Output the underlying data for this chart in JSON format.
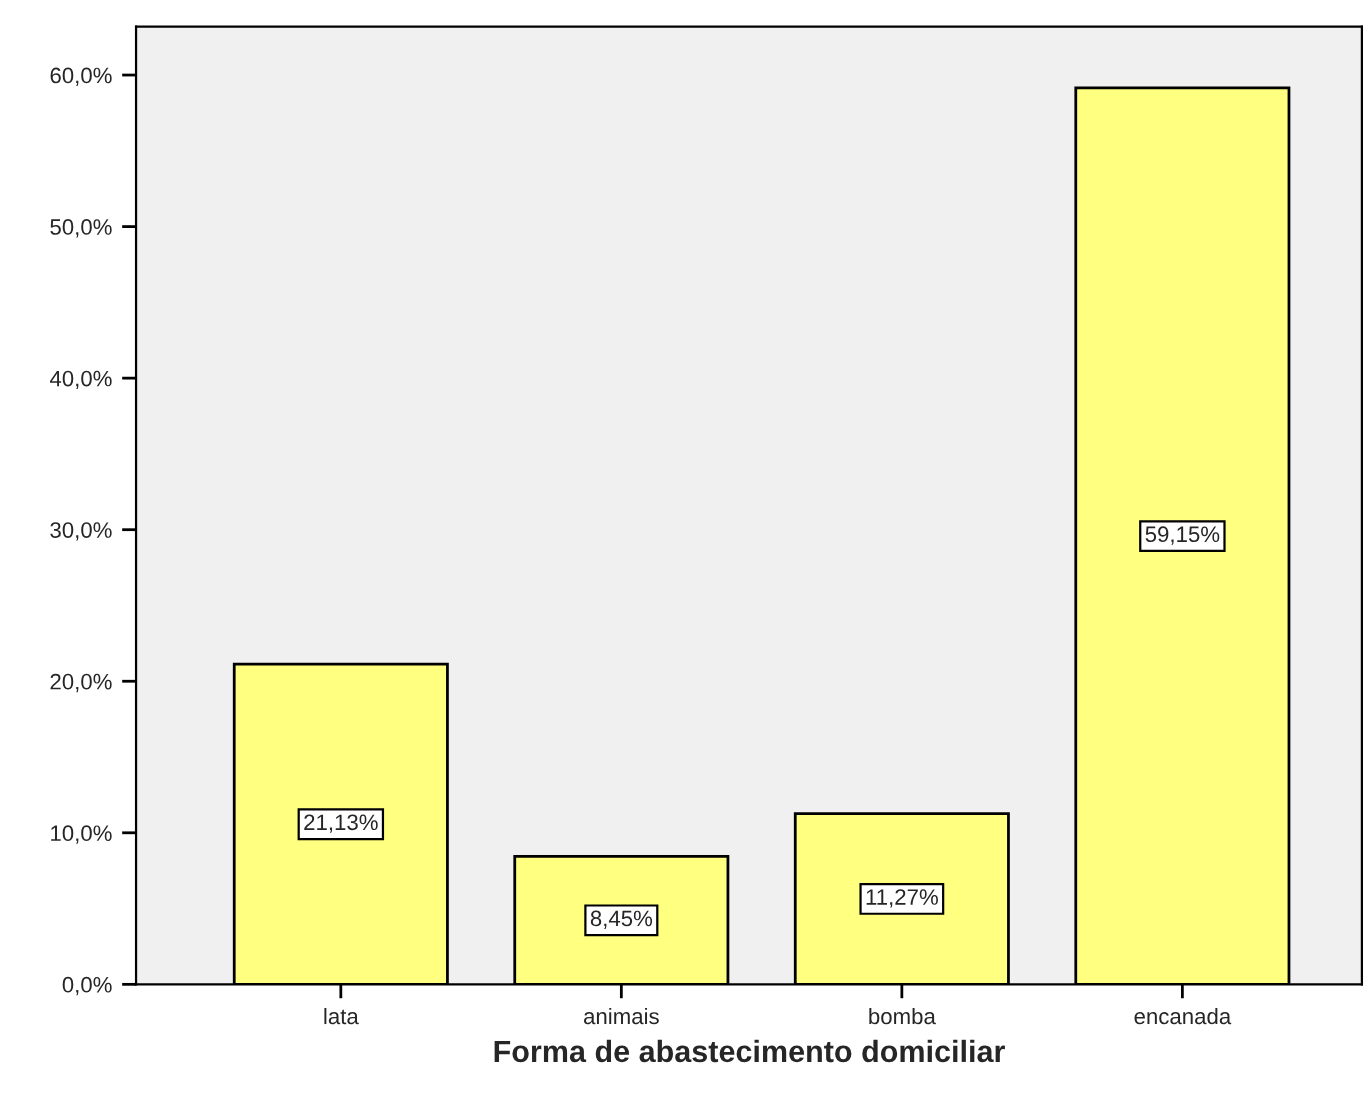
{
  "chart_data": {
    "type": "bar",
    "xlabel": "Forma de abastecimento domiciliar",
    "categories": [
      "lata",
      "animais",
      "bomba",
      "encanada"
    ],
    "values": [
      21.13,
      8.45,
      11.27,
      59.15
    ],
    "value_labels": [
      "21,13%",
      "8,45%",
      "11,27%",
      "59,15%"
    ],
    "color": "#ffff80",
    "ylim": [
      0,
      63.2
    ],
    "yticks": [
      {
        "value": 0,
        "label": "0,0%"
      },
      {
        "value": 10,
        "label": "10,0%"
      },
      {
        "value": 20,
        "label": "20,0%"
      },
      {
        "value": 30,
        "label": "30,0%"
      },
      {
        "value": 40,
        "label": "40,0%"
      },
      {
        "value": 50,
        "label": "50,0%"
      },
      {
        "value": 60,
        "label": "60,0%"
      }
    ],
    "grid": false,
    "legend": false
  }
}
